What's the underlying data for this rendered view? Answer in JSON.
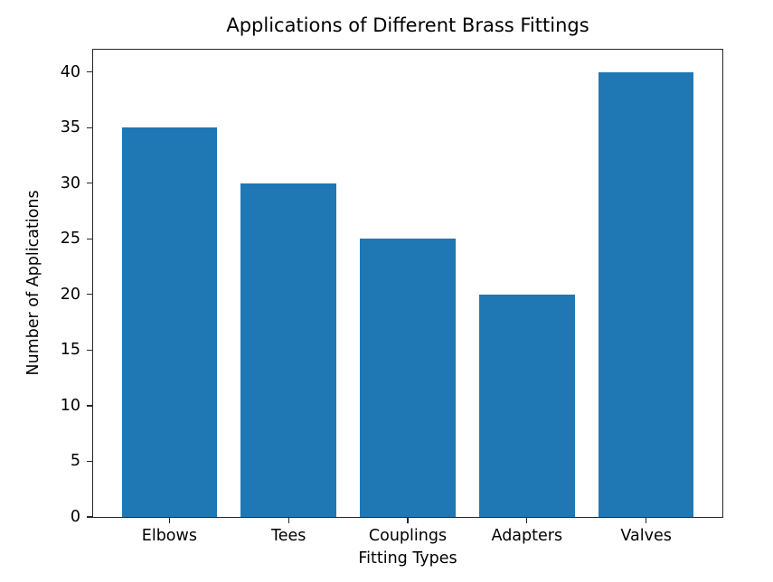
{
  "figure": {
    "background": "#ffffff"
  },
  "chart_data": {
    "type": "bar",
    "title": "Applications of Different Brass Fittings",
    "xlabel": "Fitting Types",
    "ylabel": "Number of Applications",
    "categories": [
      "Elbows",
      "Tees",
      "Couplings",
      "Adapters",
      "Valves"
    ],
    "values": [
      35,
      30,
      25,
      20,
      40
    ],
    "ylim": [
      0,
      42
    ],
    "yticks": [
      0,
      5,
      10,
      15,
      20,
      25,
      30,
      35,
      40
    ],
    "bar_color": "#1f77b4",
    "axis_color": "#262626",
    "text_color": "#000000",
    "bar_width_fraction": 0.8,
    "x_range": [
      -0.64,
      4.64
    ],
    "grid": false,
    "legend": "none"
  }
}
